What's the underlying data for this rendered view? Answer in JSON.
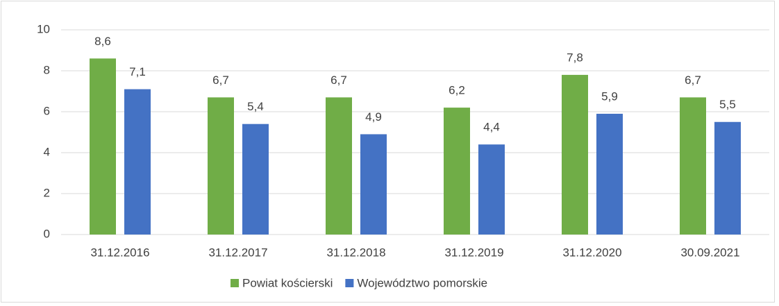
{
  "chart_data": {
    "type": "bar",
    "categories": [
      "31.12.2016",
      "31.12.2017",
      "31.12.2018",
      "31.12.2019",
      "31.12.2020",
      "30.09.2021"
    ],
    "series": [
      {
        "name": "Powiat kościerski",
        "color": "#70ad47",
        "values": [
          8.6,
          6.7,
          6.7,
          6.2,
          7.8,
          6.7
        ],
        "value_labels": [
          "8,6",
          "6,7",
          "6,7",
          "6,2",
          "7,8",
          "6,7"
        ]
      },
      {
        "name": "Województwo pomorskie",
        "color": "#4472c4",
        "values": [
          7.1,
          5.4,
          4.9,
          4.4,
          5.9,
          5.5
        ],
        "value_labels": [
          "7,1",
          "5,4",
          "4,9",
          "4,4",
          "5,9",
          "5,5"
        ]
      }
    ],
    "ylim": [
      0,
      10
    ],
    "yticks": [
      0,
      2,
      4,
      6,
      8,
      10
    ],
    "grid": true,
    "legend": "bottom"
  }
}
